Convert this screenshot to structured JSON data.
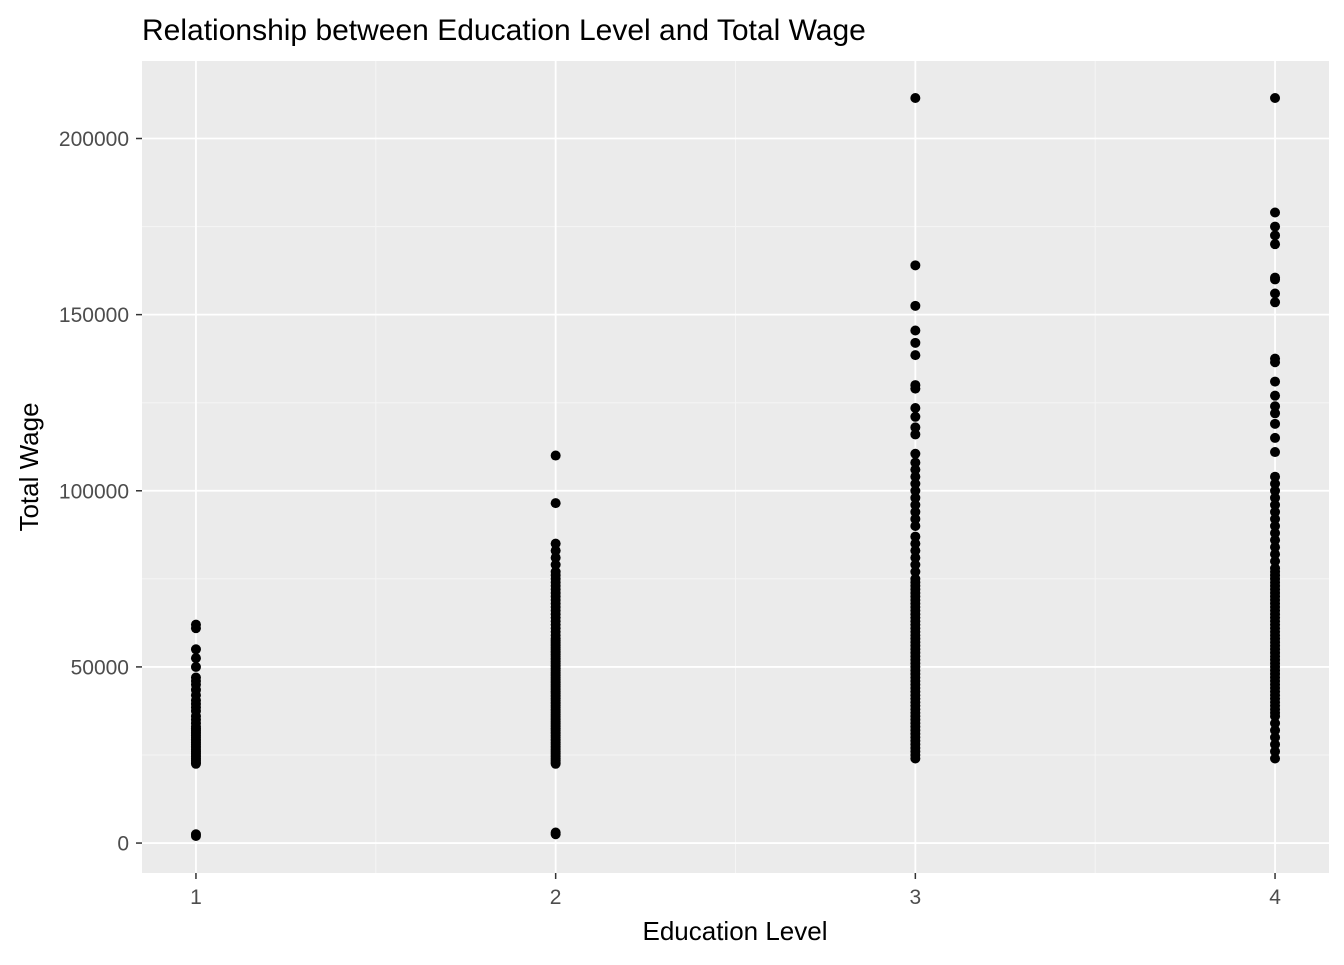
{
  "chart_data": {
    "type": "scatter",
    "title": "Relationship between Education Level and Total Wage",
    "xlabel": "Education Level",
    "ylabel": "Total Wage",
    "x_ticks": [
      1,
      2,
      3,
      4
    ],
    "x_tick_labels": [
      "1",
      "2",
      "3",
      "4"
    ],
    "y_ticks": [
      0,
      50000,
      100000,
      150000,
      200000
    ],
    "y_tick_labels": [
      "0",
      "50000",
      "100000",
      "150000",
      "200000"
    ],
    "xlim": [
      0.85,
      4.15
    ],
    "ylim": [
      -8500,
      222000
    ],
    "grid": true,
    "legend": "none",
    "colors": {
      "panel_background": "#ebebeb",
      "grid_major": "#ffffff",
      "grid_minor": "#f5f5f5",
      "point": "#000000",
      "tick_label": "#4d4d4d",
      "axis_title": "#000000"
    },
    "series": [
      {
        "x": 1,
        "values": [
          2000,
          2500,
          22500,
          23000,
          23500,
          24000,
          24500,
          25000,
          25500,
          26000,
          26500,
          27000,
          27500,
          28000,
          28500,
          29000,
          29500,
          30000,
          30500,
          31000,
          31500,
          32000,
          32500,
          33000,
          34000,
          35000,
          36000,
          37500,
          38500,
          39500,
          40500,
          42000,
          43500,
          45000,
          46000,
          47000,
          50000,
          52500,
          55000,
          61000,
          62000
        ]
      },
      {
        "x": 2,
        "values": [
          2500,
          3000,
          22500,
          23000,
          23500,
          24000,
          24500,
          25000,
          25500,
          26000,
          26500,
          27000,
          27500,
          28000,
          28500,
          29000,
          29500,
          30000,
          30500,
          31000,
          31500,
          32000,
          32500,
          33000,
          33500,
          34000,
          34500,
          35000,
          35500,
          36000,
          36500,
          37000,
          37500,
          38000,
          38500,
          39000,
          39500,
          40000,
          40500,
          41000,
          41500,
          42000,
          42500,
          43000,
          43500,
          44000,
          44500,
          45000,
          45500,
          46000,
          46500,
          47000,
          47500,
          48000,
          48500,
          49000,
          49500,
          50000,
          50500,
          51000,
          51500,
          52000,
          52500,
          53000,
          53500,
          54000,
          54500,
          55000,
          55500,
          56000,
          56500,
          57000,
          57500,
          58000,
          59000,
          60000,
          61000,
          62000,
          63000,
          64000,
          65000,
          66000,
          67000,
          68000,
          69000,
          70000,
          71000,
          72000,
          73000,
          74000,
          75000,
          76000,
          77000,
          79000,
          81000,
          83000,
          85000,
          96500,
          110000
        ]
      },
      {
        "x": 3,
        "values": [
          24000,
          25000,
          26000,
          27000,
          28000,
          29000,
          30000,
          31000,
          32000,
          33000,
          34000,
          35000,
          36000,
          37000,
          38000,
          39000,
          40000,
          41000,
          42000,
          43000,
          44000,
          45000,
          46000,
          47000,
          48000,
          49000,
          50000,
          51000,
          52000,
          53000,
          54000,
          55000,
          56000,
          57000,
          58000,
          59000,
          60000,
          61000,
          62000,
          63000,
          64000,
          65000,
          66000,
          67000,
          68000,
          69000,
          70000,
          71000,
          72000,
          73000,
          74000,
          75000,
          77000,
          79000,
          81000,
          83000,
          85000,
          87000,
          90000,
          92000,
          94000,
          96000,
          98000,
          100000,
          102000,
          104000,
          106000,
          108000,
          110500,
          116000,
          118000,
          121000,
          123500,
          129000,
          130000,
          138500,
          142000,
          145500,
          152500,
          164000,
          211500
        ]
      },
      {
        "x": 4,
        "values": [
          24000,
          26000,
          28000,
          30000,
          32000,
          34000,
          36000,
          37000,
          38000,
          39000,
          40000,
          41000,
          42000,
          43000,
          44000,
          45000,
          46000,
          47000,
          48000,
          49000,
          50000,
          51000,
          52000,
          53000,
          54000,
          55000,
          56000,
          57000,
          58000,
          59000,
          60000,
          61000,
          62000,
          63000,
          64000,
          65000,
          66000,
          67000,
          68000,
          69000,
          70000,
          71000,
          72000,
          73000,
          74000,
          75000,
          76000,
          77000,
          78000,
          80000,
          82000,
          84000,
          86000,
          88000,
          90000,
          92000,
          94000,
          96000,
          98000,
          100000,
          102000,
          104000,
          111000,
          115000,
          119000,
          122000,
          124000,
          127000,
          131000,
          136500,
          137500,
          153500,
          156000,
          160000,
          160500,
          170000,
          172500,
          175000,
          179000,
          211500
        ]
      }
    ]
  }
}
